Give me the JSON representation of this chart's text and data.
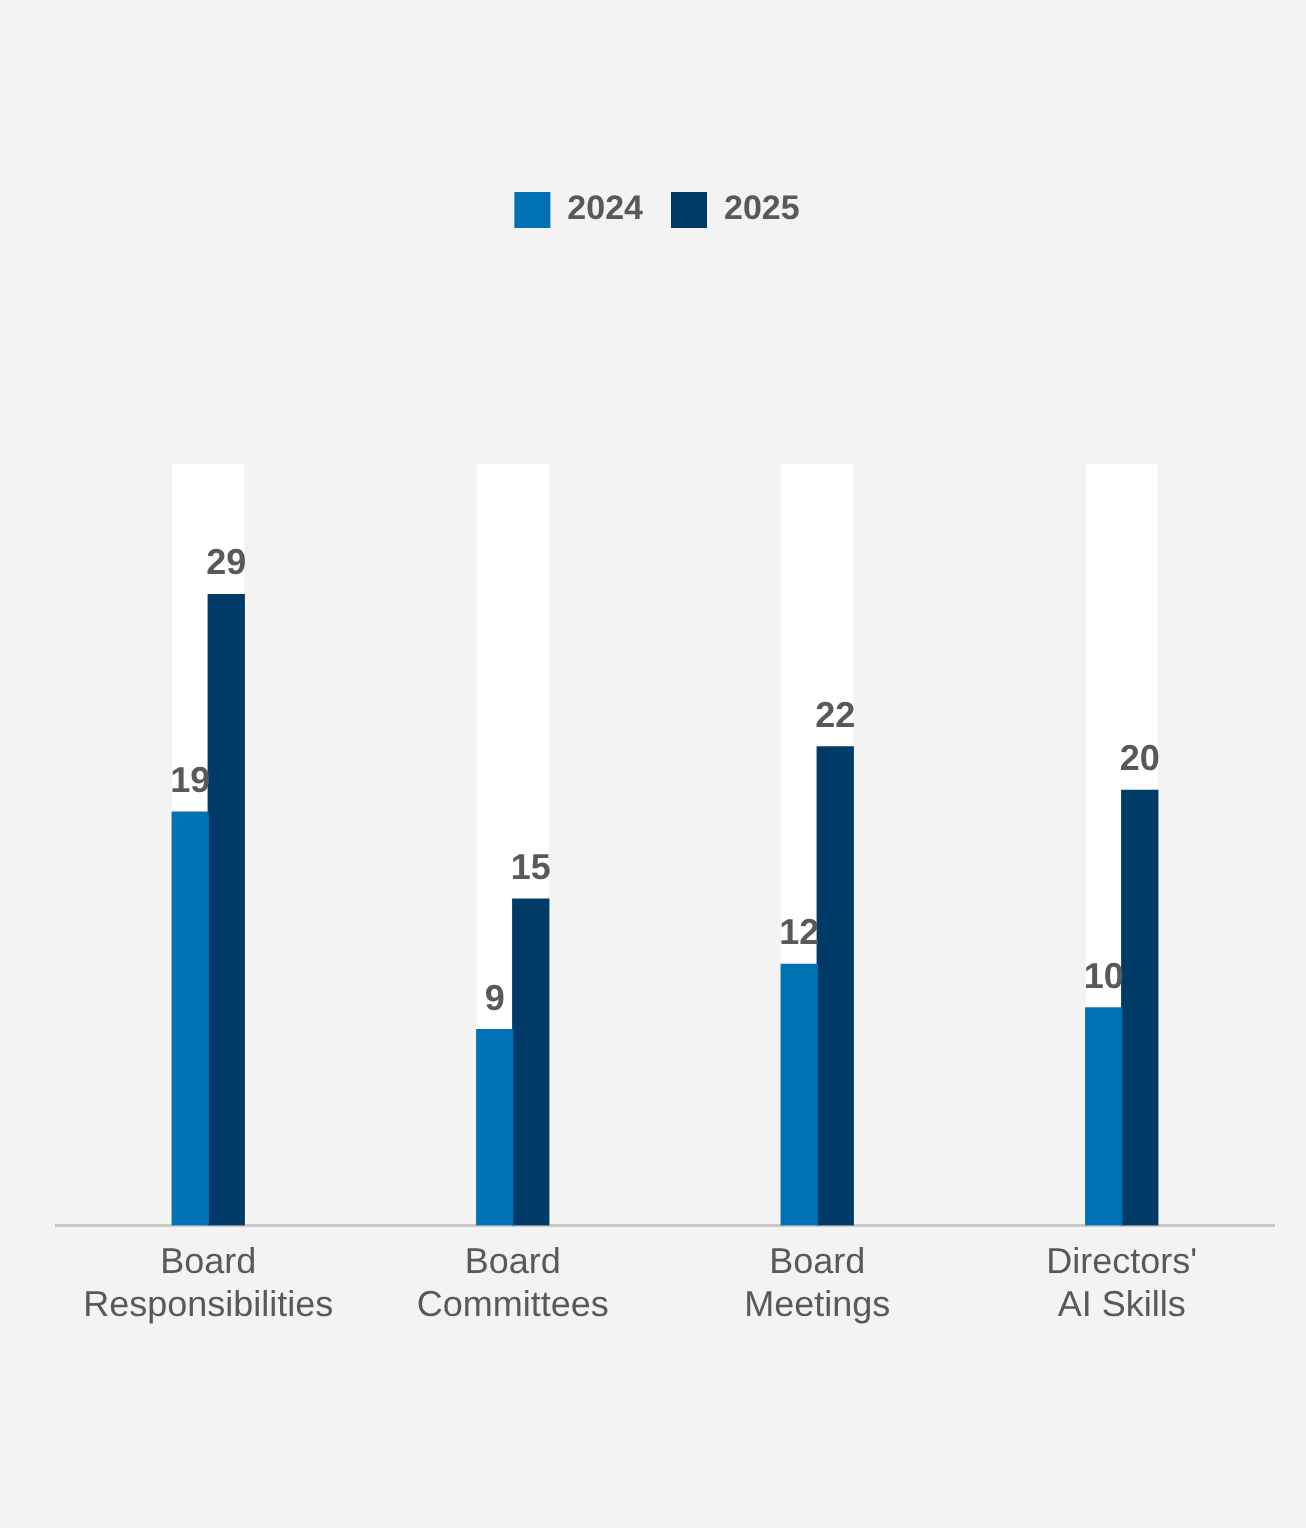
{
  "chart_data": {
    "type": "bar",
    "categories": [
      "Board Responsibilities",
      "Board Committees",
      "Board Meetings",
      "Directors' AI Skills"
    ],
    "series": [
      {
        "name": "2024",
        "color": "#0071b3",
        "values": [
          19,
          9,
          12,
          10
        ]
      },
      {
        "name": "2025",
        "color": "#003a66",
        "values": [
          29,
          15,
          22,
          20
        ]
      }
    ],
    "tick_labels": "x",
    "grid": false,
    "legend": "top",
    "data_labels": true
  }
}
